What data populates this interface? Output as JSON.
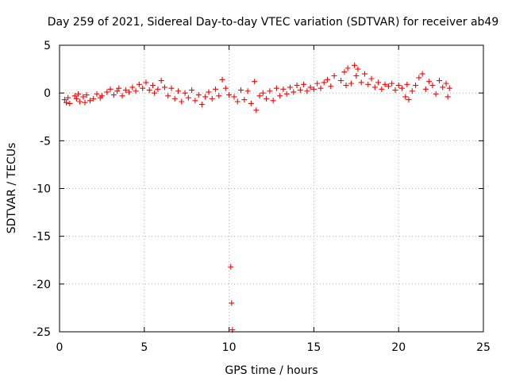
{
  "chart_data": {
    "type": "scatter",
    "title": "Day 259 of 2021, Sidereal Day-to-day VTEC variation (SDTVAR) for receiver ab49",
    "xlabel": "GPS time / hours",
    "ylabel": "SDTVAR / TECUs",
    "xlim": [
      0,
      25
    ],
    "ylim": [
      -25,
      5
    ],
    "xticks": [
      0,
      5,
      10,
      15,
      20,
      25
    ],
    "yticks": [
      5,
      0,
      -5,
      -10,
      -15,
      -20,
      -25
    ],
    "xtick_labels": [
      "0",
      "5",
      "10",
      "15",
      "20",
      "25"
    ],
    "ytick_labels": [
      "5",
      "0",
      "-5",
      "-10",
      "-15",
      "-20",
      "-25"
    ],
    "grid": true,
    "marker": "plus",
    "color": "#ff0000",
    "series": [
      {
        "name": "SDTVAR",
        "points": [
          [
            0.3,
            -0.7
          ],
          [
            0.4,
            -1.0
          ],
          [
            0.5,
            -0.5
          ],
          [
            0.6,
            -1.1
          ],
          [
            0.9,
            -0.3
          ],
          [
            1.0,
            -0.6
          ],
          [
            1.1,
            -0.1
          ],
          [
            1.2,
            -0.9
          ],
          [
            1.4,
            -0.4
          ],
          [
            1.5,
            -1.0
          ],
          [
            1.6,
            -0.2
          ],
          [
            1.8,
            -0.8
          ],
          [
            2.0,
            -0.6
          ],
          [
            2.2,
            -0.1
          ],
          [
            2.4,
            -0.5
          ],
          [
            2.5,
            -0.3
          ],
          [
            2.8,
            0.1
          ],
          [
            3.0,
            0.4
          ],
          [
            3.2,
            -0.2
          ],
          [
            3.4,
            0.2
          ],
          [
            3.5,
            0.5
          ],
          [
            3.7,
            -0.3
          ],
          [
            3.9,
            0.3
          ],
          [
            4.1,
            0.1
          ],
          [
            4.3,
            0.6
          ],
          [
            4.5,
            0.2
          ],
          [
            4.7,
            0.9
          ],
          [
            4.9,
            0.5
          ],
          [
            5.1,
            1.1
          ],
          [
            5.3,
            0.3
          ],
          [
            5.5,
            0.8
          ],
          [
            5.6,
            0.0
          ],
          [
            5.8,
            0.4
          ],
          [
            6.0,
            1.3
          ],
          [
            6.2,
            0.6
          ],
          [
            6.4,
            -0.3
          ],
          [
            6.6,
            0.5
          ],
          [
            6.8,
            -0.6
          ],
          [
            7.0,
            0.2
          ],
          [
            7.2,
            -0.9
          ],
          [
            7.4,
            0.0
          ],
          [
            7.6,
            -0.5
          ],
          [
            7.8,
            0.3
          ],
          [
            8.0,
            -0.8
          ],
          [
            8.2,
            -0.2
          ],
          [
            8.4,
            -1.2
          ],
          [
            8.6,
            -0.4
          ],
          [
            8.8,
            0.1
          ],
          [
            9.0,
            -0.6
          ],
          [
            9.2,
            0.4
          ],
          [
            9.4,
            -0.3
          ],
          [
            9.6,
            1.4
          ],
          [
            9.8,
            0.5
          ],
          [
            10.0,
            -0.2
          ],
          [
            10.1,
            -18.2
          ],
          [
            10.15,
            -22.0
          ],
          [
            10.2,
            -24.8
          ],
          [
            10.3,
            -0.4
          ],
          [
            10.5,
            -0.9
          ],
          [
            10.7,
            0.3
          ],
          [
            10.9,
            -0.7
          ],
          [
            11.1,
            0.2
          ],
          [
            11.3,
            -1.1
          ],
          [
            11.5,
            1.2
          ],
          [
            11.6,
            -1.8
          ],
          [
            11.8,
            -0.3
          ],
          [
            12.0,
            0.0
          ],
          [
            12.2,
            -0.6
          ],
          [
            12.4,
            0.2
          ],
          [
            12.6,
            -0.8
          ],
          [
            12.8,
            0.5
          ],
          [
            13.0,
            -0.3
          ],
          [
            13.2,
            0.4
          ],
          [
            13.4,
            -0.1
          ],
          [
            13.6,
            0.6
          ],
          [
            13.8,
            0.1
          ],
          [
            14.0,
            0.8
          ],
          [
            14.2,
            0.3
          ],
          [
            14.4,
            0.9
          ],
          [
            14.6,
            0.2
          ],
          [
            14.8,
            0.6
          ],
          [
            15.0,
            0.4
          ],
          [
            15.2,
            1.0
          ],
          [
            15.4,
            0.5
          ],
          [
            15.6,
            1.1
          ],
          [
            15.8,
            1.4
          ],
          [
            16.0,
            0.7
          ],
          [
            16.2,
            1.8
          ],
          [
            16.6,
            1.3
          ],
          [
            16.8,
            2.2
          ],
          [
            16.9,
            0.8
          ],
          [
            17.0,
            2.6
          ],
          [
            17.2,
            1.0
          ],
          [
            17.4,
            2.9
          ],
          [
            17.5,
            1.8
          ],
          [
            17.6,
            2.5
          ],
          [
            17.8,
            1.1
          ],
          [
            18.0,
            2.0
          ],
          [
            18.2,
            0.9
          ],
          [
            18.4,
            1.5
          ],
          [
            18.6,
            0.6
          ],
          [
            18.8,
            1.1
          ],
          [
            19.0,
            0.4
          ],
          [
            19.2,
            0.9
          ],
          [
            19.4,
            0.7
          ],
          [
            19.6,
            1.0
          ],
          [
            19.8,
            0.3
          ],
          [
            20.0,
            0.8
          ],
          [
            20.2,
            0.5
          ],
          [
            20.4,
            -0.4
          ],
          [
            20.5,
            0.9
          ],
          [
            20.6,
            -0.7
          ],
          [
            20.8,
            0.2
          ],
          [
            21.0,
            0.8
          ],
          [
            21.2,
            1.6
          ],
          [
            21.4,
            2.0
          ],
          [
            21.6,
            0.4
          ],
          [
            21.8,
            1.2
          ],
          [
            22.0,
            0.8
          ],
          [
            22.2,
            -0.1
          ],
          [
            22.4,
            1.3
          ],
          [
            22.6,
            0.6
          ],
          [
            22.8,
            1.0
          ],
          [
            22.9,
            -0.4
          ],
          [
            23.0,
            0.5
          ]
        ]
      }
    ]
  }
}
